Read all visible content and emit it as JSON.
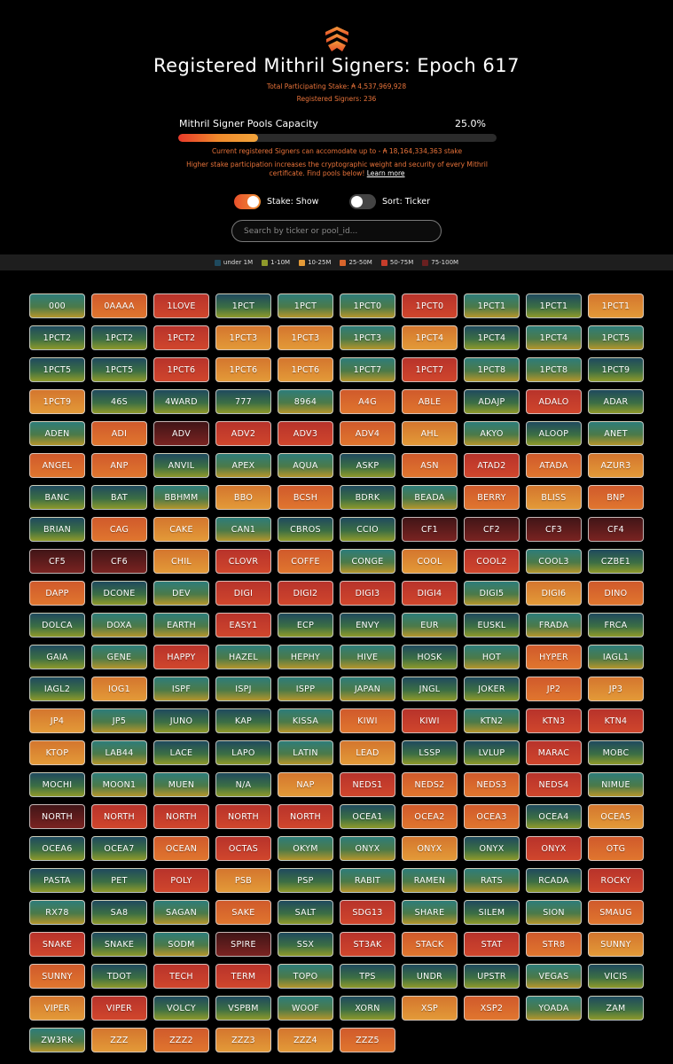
{
  "header": {
    "title": "Registered Mithril Signers: Epoch 617",
    "total_stake": "Total Participating Stake: ₳ 4,537,969,928",
    "registered": "Registered Signers: 236",
    "capacity_label": "Mithril Signer Pools Capacity",
    "capacity_pct": "25.0%",
    "capacity_value": 25.0,
    "accommodate": "Current registered Signers can accomodate up to - ₳ 18,164,334,363 stake",
    "info_text": "Higher stake participation increases the cryptographic weight and security of every Mithril certificate. Find pools below!",
    "learn_more": "Learn more"
  },
  "toggles": {
    "stake_label": "Stake: Show",
    "sort_label": "Sort: Ticker"
  },
  "search": {
    "placeholder": "Search by ticker or pool_id..."
  },
  "legend": [
    {
      "label": "under 1M",
      "color": "#1f4a5e"
    },
    {
      "label": "1-10M",
      "color": "#8f9a2b"
    },
    {
      "label": "10-25M",
      "color": "#e39a38"
    },
    {
      "label": "25-50M",
      "color": "#d8652c"
    },
    {
      "label": "50-75M",
      "color": "#c63d2b"
    },
    {
      "label": "75-100M",
      "color": "#6a2020"
    }
  ],
  "pools": [
    [
      "000",
      0
    ],
    [
      "0AAAA",
      3
    ],
    [
      "1LOVE",
      4
    ],
    [
      "1PCT",
      1
    ],
    [
      "1PCT",
      0
    ],
    [
      "1PCT0",
      0
    ],
    [
      "1PCT0",
      4
    ],
    [
      "1PCT1",
      0
    ],
    [
      "1PCT1",
      1
    ],
    [
      "1PCT1",
      2
    ],
    [
      "1PCT2",
      1
    ],
    [
      "1PCT2",
      1
    ],
    [
      "1PCT2",
      4
    ],
    [
      "1PCT3",
      2
    ],
    [
      "1PCT3",
      2
    ],
    [
      "1PCT3",
      0
    ],
    [
      "1PCT4",
      2
    ],
    [
      "1PCT4",
      1
    ],
    [
      "1PCT4",
      0
    ],
    [
      "1PCT5",
      0
    ],
    [
      "1PCT5",
      1
    ],
    [
      "1PCT5",
      1
    ],
    [
      "1PCT6",
      4
    ],
    [
      "1PCT6",
      2
    ],
    [
      "1PCT6",
      2
    ],
    [
      "1PCT7",
      0
    ],
    [
      "1PCT7",
      4
    ],
    [
      "1PCT8",
      0
    ],
    [
      "1PCT8",
      0
    ],
    [
      "1PCT9",
      1
    ],
    [
      "1PCT9",
      2
    ],
    [
      "46S",
      1
    ],
    [
      "4WARD",
      1
    ],
    [
      "777",
      1
    ],
    [
      "8964",
      0
    ],
    [
      "A4G",
      3
    ],
    [
      "ABLE",
      3
    ],
    [
      "ADAJP",
      1
    ],
    [
      "ADALO",
      4
    ],
    [
      "ADAR",
      1
    ],
    [
      "ADEN",
      0
    ],
    [
      "ADI",
      3
    ],
    [
      "ADV",
      5
    ],
    [
      "ADV2",
      4
    ],
    [
      "ADV3",
      4
    ],
    [
      "ADV4",
      3
    ],
    [
      "AHL",
      2
    ],
    [
      "AKYO",
      0
    ],
    [
      "ALOOP",
      1
    ],
    [
      "ANET",
      0
    ],
    [
      "ANGEL",
      3
    ],
    [
      "ANP",
      3
    ],
    [
      "ANVIL",
      1
    ],
    [
      "APEX",
      0
    ],
    [
      "AQUA",
      0
    ],
    [
      "ASKP",
      1
    ],
    [
      "ASN",
      3
    ],
    [
      "ATAD2",
      4
    ],
    [
      "ATADA",
      3
    ],
    [
      "AZUR3",
      2
    ],
    [
      "BANC",
      1
    ],
    [
      "BAT",
      1
    ],
    [
      "BBHMM",
      0
    ],
    [
      "BBO",
      2
    ],
    [
      "BCSH",
      3
    ],
    [
      "BDRK",
      1
    ],
    [
      "BEADA",
      0
    ],
    [
      "BERRY",
      3
    ],
    [
      "BLISS",
      2
    ],
    [
      "BNP",
      3
    ],
    [
      "BRIAN",
      1
    ],
    [
      "CAG",
      3
    ],
    [
      "CAKE",
      2
    ],
    [
      "CAN1",
      0
    ],
    [
      "CBROS",
      1
    ],
    [
      "CCIO",
      1
    ],
    [
      "CF1",
      5
    ],
    [
      "CF2",
      5
    ],
    [
      "CF3",
      5
    ],
    [
      "CF4",
      5
    ],
    [
      "CF5",
      5
    ],
    [
      "CF6",
      5
    ],
    [
      "CHIL",
      2
    ],
    [
      "CLOVR",
      4
    ],
    [
      "COFFE",
      3
    ],
    [
      "CONGE",
      0
    ],
    [
      "COOL",
      2
    ],
    [
      "COOL2",
      4
    ],
    [
      "COOL3",
      0
    ],
    [
      "CZBE1",
      1
    ],
    [
      "DAPP",
      3
    ],
    [
      "DCONE",
      1
    ],
    [
      "DEV",
      0
    ],
    [
      "DIGI",
      4
    ],
    [
      "DIGI2",
      4
    ],
    [
      "DIGI3",
      4
    ],
    [
      "DIGI4",
      4
    ],
    [
      "DIGI5",
      0
    ],
    [
      "DIGI6",
      2
    ],
    [
      "DINO",
      3
    ],
    [
      "DOLCA",
      1
    ],
    [
      "DOXA",
      0
    ],
    [
      "EARTH",
      0
    ],
    [
      "EASY1",
      4
    ],
    [
      "ECP",
      1
    ],
    [
      "ENVY",
      1
    ],
    [
      "EUR",
      0
    ],
    [
      "EUSKL",
      1
    ],
    [
      "FRADA",
      0
    ],
    [
      "FRCA",
      1
    ],
    [
      "GAIA",
      1
    ],
    [
      "GENE",
      0
    ],
    [
      "HAPPY",
      4
    ],
    [
      "HAZEL",
      0
    ],
    [
      "HEPHY",
      0
    ],
    [
      "HIVE",
      0
    ],
    [
      "HOSK",
      1
    ],
    [
      "HOT",
      0
    ],
    [
      "HYPER",
      3
    ],
    [
      "IAGL1",
      0
    ],
    [
      "IAGL2",
      1
    ],
    [
      "IOG1",
      2
    ],
    [
      "ISPF",
      0
    ],
    [
      "ISPJ",
      0
    ],
    [
      "ISPP",
      0
    ],
    [
      "JAPAN",
      0
    ],
    [
      "JNGL",
      1
    ],
    [
      "JOKER",
      1
    ],
    [
      "JP2",
      3
    ],
    [
      "JP3",
      2
    ],
    [
      "JP4",
      2
    ],
    [
      "JP5",
      0
    ],
    [
      "JUNO",
      1
    ],
    [
      "KAP",
      1
    ],
    [
      "KISSA",
      0
    ],
    [
      "KIWI",
      3
    ],
    [
      "KIWI",
      4
    ],
    [
      "KTN2",
      0
    ],
    [
      "KTN3",
      4
    ],
    [
      "KTN4",
      4
    ],
    [
      "KTOP",
      2
    ],
    [
      "LAB44",
      0
    ],
    [
      "LACE",
      1
    ],
    [
      "LAPO",
      1
    ],
    [
      "LATIN",
      0
    ],
    [
      "LEAD",
      2
    ],
    [
      "LSSP",
      1
    ],
    [
      "LVLUP",
      1
    ],
    [
      "MARAC",
      4
    ],
    [
      "MOBC",
      1
    ],
    [
      "MOCHI",
      1
    ],
    [
      "MOON1",
      0
    ],
    [
      "MUEN",
      0
    ],
    [
      "N/A",
      1
    ],
    [
      "NAP",
      2
    ],
    [
      "NEDS1",
      4
    ],
    [
      "NEDS2",
      3
    ],
    [
      "NEDS3",
      3
    ],
    [
      "NEDS4",
      4
    ],
    [
      "NIMUE",
      0
    ],
    [
      "NORTH",
      5
    ],
    [
      "NORTH",
      4
    ],
    [
      "NORTH",
      4
    ],
    [
      "NORTH",
      4
    ],
    [
      "NORTH",
      4
    ],
    [
      "OCEA1",
      1
    ],
    [
      "OCEA2",
      3
    ],
    [
      "OCEA3",
      3
    ],
    [
      "OCEA4",
      1
    ],
    [
      "OCEA5",
      2
    ],
    [
      "OCEA6",
      1
    ],
    [
      "OCEA7",
      1
    ],
    [
      "OCEAN",
      3
    ],
    [
      "OCTAS",
      4
    ],
    [
      "OKYM",
      0
    ],
    [
      "ONYX",
      0
    ],
    [
      "ONYX",
      2
    ],
    [
      "ONYX",
      1
    ],
    [
      "ONYX",
      4
    ],
    [
      "OTG",
      3
    ],
    [
      "PASTA",
      1
    ],
    [
      "PET",
      1
    ],
    [
      "POLY",
      4
    ],
    [
      "PSB",
      2
    ],
    [
      "PSP",
      1
    ],
    [
      "RABIT",
      0
    ],
    [
      "RAMEN",
      0
    ],
    [
      "RATS",
      0
    ],
    [
      "RCADA",
      1
    ],
    [
      "ROCKY",
      4
    ],
    [
      "RX78",
      0
    ],
    [
      "SA8",
      1
    ],
    [
      "SAGAN",
      0
    ],
    [
      "SAKE",
      3
    ],
    [
      "SALT",
      1
    ],
    [
      "SDG13",
      4
    ],
    [
      "SHARE",
      0
    ],
    [
      "SILEM",
      1
    ],
    [
      "SION",
      0
    ],
    [
      "SMAUG",
      3
    ],
    [
      "SNAKE",
      4
    ],
    [
      "SNAKE",
      1
    ],
    [
      "SODM",
      0
    ],
    [
      "SPIRE",
      5
    ],
    [
      "SSX",
      1
    ],
    [
      "ST3AK",
      4
    ],
    [
      "STACK",
      3
    ],
    [
      "STAT",
      4
    ],
    [
      "STR8",
      3
    ],
    [
      "SUNNY",
      2
    ],
    [
      "SUNNY",
      3
    ],
    [
      "TDOT",
      1
    ],
    [
      "TECH",
      4
    ],
    [
      "TERM",
      4
    ],
    [
      "TOPO",
      0
    ],
    [
      "TPS",
      1
    ],
    [
      "UNDR",
      1
    ],
    [
      "UPSTR",
      1
    ],
    [
      "VEGAS",
      0
    ],
    [
      "VICIS",
      1
    ],
    [
      "VIPER",
      2
    ],
    [
      "VIPER",
      4
    ],
    [
      "VOLCY",
      1
    ],
    [
      "VSPBM",
      1
    ],
    [
      "WOOF",
      0
    ],
    [
      "XORN",
      1
    ],
    [
      "XSP",
      2
    ],
    [
      "XSP2",
      3
    ],
    [
      "YOADA",
      0
    ],
    [
      "ZAM",
      1
    ],
    [
      "ZW3RK",
      0
    ],
    [
      "ZZZ",
      2
    ],
    [
      "ZZZ2",
      3
    ],
    [
      "ZZZ3",
      2
    ],
    [
      "ZZZ4",
      2
    ],
    [
      "ZZZ5",
      3
    ]
  ]
}
